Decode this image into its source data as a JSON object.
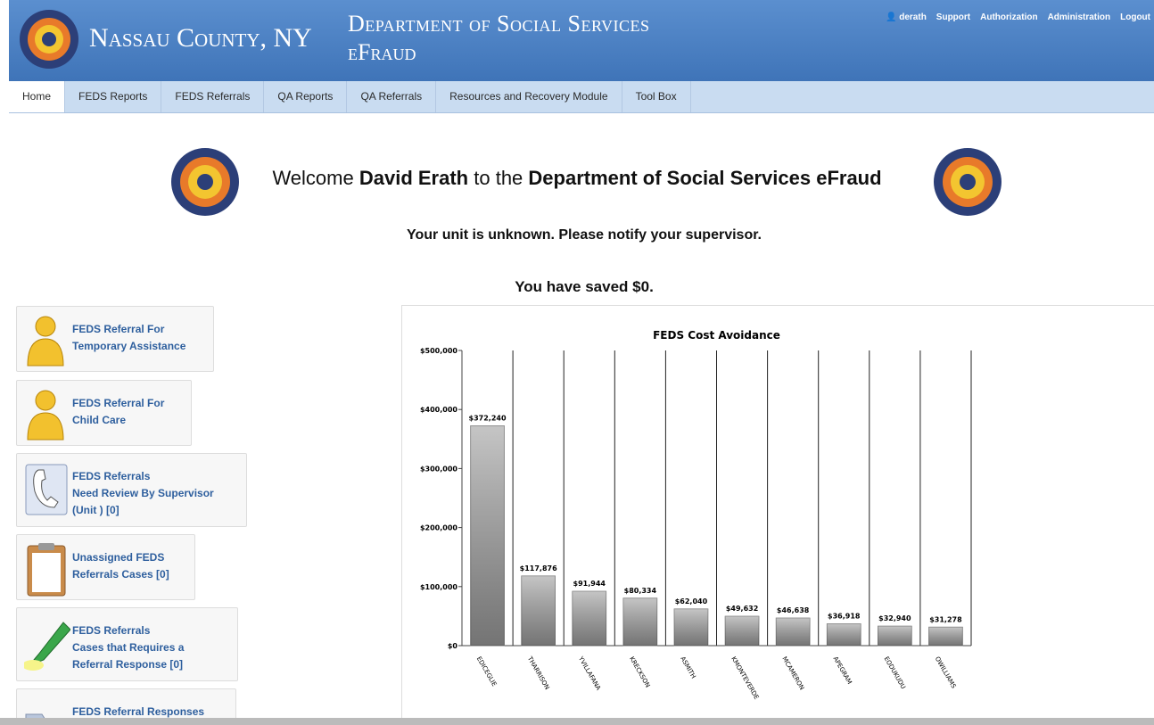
{
  "header": {
    "county": "Nassau County, NY",
    "department": "Department of Social Services",
    "app": "eFraud",
    "user": "derath",
    "links": [
      "Support",
      "Authorization",
      "Administration",
      "Logout"
    ]
  },
  "nav": [
    "Home",
    "FEDS Reports",
    "FEDS Referrals",
    "QA Reports",
    "QA Referrals",
    "Resources and Recovery Module",
    "Tool Box"
  ],
  "welcome": {
    "prefix": "Welcome",
    "name": "David Erath",
    "middle": "to the",
    "org": "Department of Social Services eFraud"
  },
  "unit_message": "Your unit is unknown. Please notify your supervisor.",
  "saved_message": "You have saved $0.",
  "sidebar": [
    {
      "lines": [
        "FEDS Referral For",
        "Temporary Assistance"
      ]
    },
    {
      "lines": [
        "FEDS Referral For",
        "Child Care"
      ]
    },
    {
      "lines": [
        "FEDS Referrals",
        "Need Review By Supervisor",
        "(Unit ) [0]"
      ]
    },
    {
      "lines": [
        "Unassigned FEDS",
        "Referrals Cases [0]"
      ]
    },
    {
      "lines": [
        "FEDS Referrals",
        "Cases that Requires a",
        "Referral Response [0]"
      ]
    },
    {
      "lines": [
        "FEDS Referral Responses"
      ]
    }
  ],
  "chart_data": {
    "type": "bar",
    "title": "FEDS Cost Avoidance",
    "categories": [
      "EDICEGLIE",
      "THARRISON",
      "YVILLAFANA",
      "KRECKSON",
      "ASMITH",
      "KMONTEVERDE",
      "MCAMERON",
      "APEGRAM",
      "EODUKUDU",
      "OWILLIAMS"
    ],
    "values": [
      372240,
      117876,
      91944,
      80334,
      62040,
      49632,
      46638,
      36918,
      32940,
      31278
    ],
    "value_labels": [
      "$372,240",
      "$117,876",
      "$91,944",
      "$80,334",
      "$62,040",
      "$49,632",
      "$46,638",
      "$36,918",
      "$32,940",
      "$31,278"
    ],
    "color": "#a6a6a6",
    "ylim": [
      0,
      500000
    ],
    "yticks": [
      {
        "value": 0,
        "label": "$0"
      },
      {
        "value": 100000,
        "label": "$100,000"
      },
      {
        "value": 200000,
        "label": "$200,000"
      },
      {
        "value": 300000,
        "label": "$300,000"
      },
      {
        "value": 400000,
        "label": "$400,000"
      },
      {
        "value": 500000,
        "label": "$500,000"
      }
    ]
  }
}
